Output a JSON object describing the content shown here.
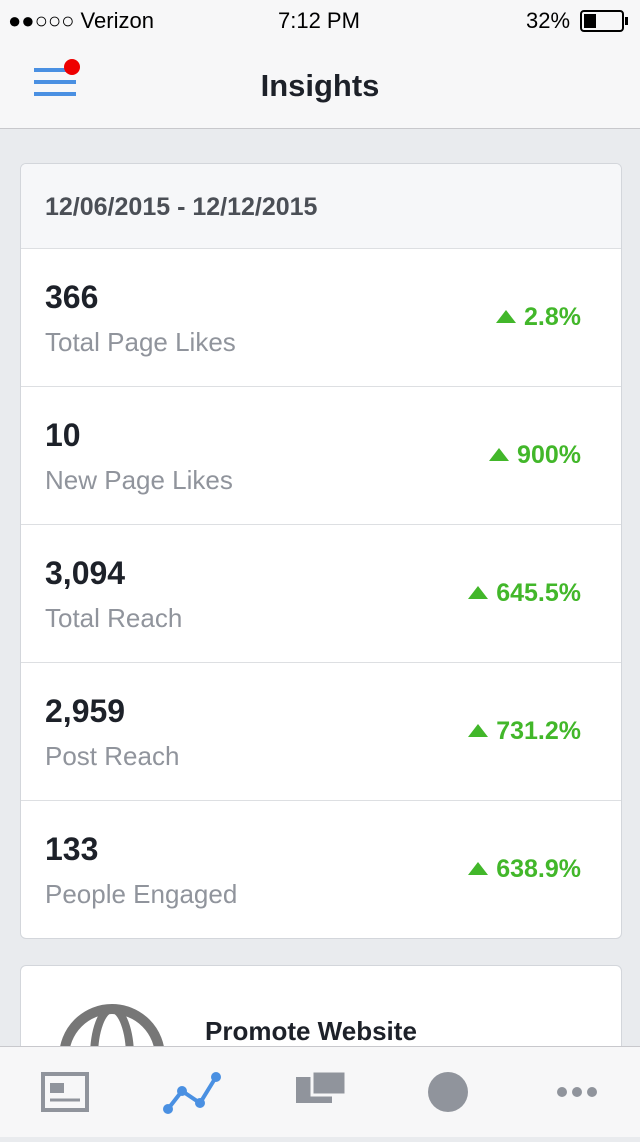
{
  "status": {
    "carrier": "●●○○○ Verizon",
    "time": "7:12 PM",
    "battery": "32%"
  },
  "header": {
    "title": "Insights"
  },
  "date_range": "12/06/2015 - 12/12/2015",
  "metrics": [
    {
      "value": "366",
      "label": "Total Page Likes",
      "change": "2.8%"
    },
    {
      "value": "10",
      "label": "New Page Likes",
      "change": "900%"
    },
    {
      "value": "3,094",
      "label": "Total Reach",
      "change": "645.5%"
    },
    {
      "value": "2,959",
      "label": "Post Reach",
      "change": "731.2%"
    },
    {
      "value": "133",
      "label": "People Engaged",
      "change": "638.9%"
    }
  ],
  "promo": {
    "title": "Promote Website"
  }
}
